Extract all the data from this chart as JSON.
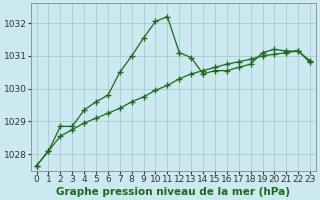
{
  "background_color": "#cce8f0",
  "grid_color": "#aacccc",
  "line_color": "#1a6b1a",
  "xlim": [
    -0.5,
    23.5
  ],
  "ylim": [
    1027.5,
    1032.6
  ],
  "yticks": [
    1028,
    1029,
    1030,
    1031,
    1032
  ],
  "xticks": [
    0,
    1,
    2,
    3,
    4,
    5,
    6,
    7,
    8,
    9,
    10,
    11,
    12,
    13,
    14,
    15,
    16,
    17,
    18,
    19,
    20,
    21,
    22,
    23
  ],
  "series_peak_x": [
    0,
    1,
    2,
    3,
    4,
    5,
    6,
    7,
    8,
    9,
    10,
    11,
    12,
    13,
    14,
    15,
    16,
    17,
    18,
    19,
    20,
    21,
    22,
    23
  ],
  "series_peak_y": [
    1027.65,
    1028.1,
    1028.85,
    1028.85,
    1029.35,
    1029.6,
    1029.8,
    1030.5,
    1031.0,
    1031.55,
    1032.05,
    1032.2,
    1031.1,
    1030.95,
    1030.45,
    1030.55,
    1030.55,
    1030.65,
    1030.75,
    1031.1,
    1031.2,
    1031.15,
    1031.15,
    1030.8
  ],
  "series_linear_x": [
    0,
    1,
    2,
    3,
    4,
    5,
    6,
    7,
    8,
    9,
    10,
    11,
    12,
    13,
    14,
    15,
    16,
    17,
    18,
    19,
    20,
    21,
    22,
    23
  ],
  "series_linear_y": [
    1027.65,
    1028.1,
    1028.55,
    1028.75,
    1028.95,
    1029.1,
    1029.25,
    1029.4,
    1029.6,
    1029.75,
    1029.95,
    1030.1,
    1030.3,
    1030.45,
    1030.55,
    1030.65,
    1030.75,
    1030.82,
    1030.9,
    1031.0,
    1031.05,
    1031.1,
    1031.15,
    1030.85
  ],
  "xlabel": "Graphe pression niveau de la mer (hPa)",
  "xlabel_fontsize": 7.5,
  "tick_fontsize": 6.5
}
